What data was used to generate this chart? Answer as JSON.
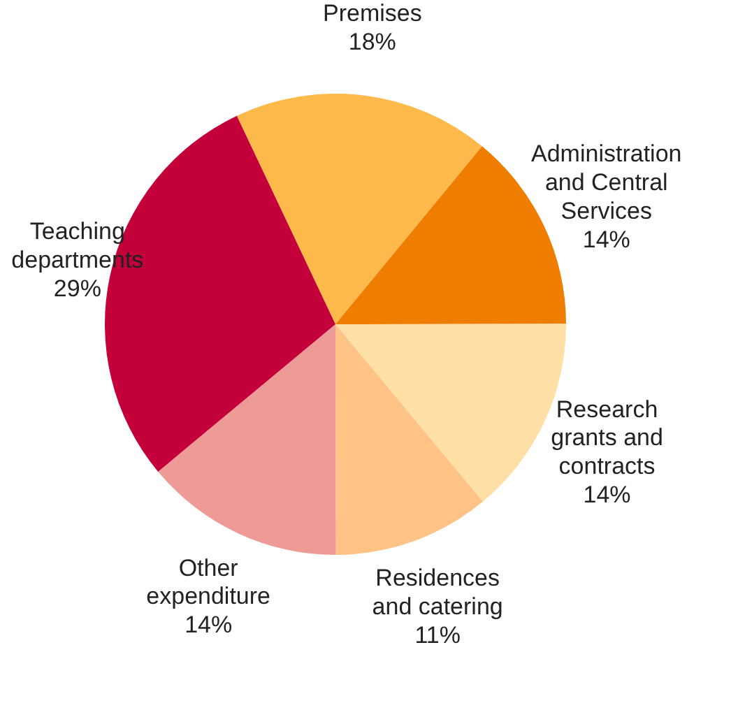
{
  "chart_data": {
    "type": "pie",
    "categories": [
      "Premises",
      "Administration and Central Services",
      "Research grants and contracts",
      "Residences and catering",
      "Other expenditure",
      "Teaching departments"
    ],
    "values": [
      18,
      14,
      14,
      11,
      14,
      29
    ],
    "value_labels": [
      "18%",
      "14%",
      "14%",
      "11%",
      "14%",
      "29%"
    ],
    "colors": [
      "#fdb94a",
      "#ef7d00",
      "#fedfa6",
      "#fec385",
      "#ee9a97",
      "#c4003a"
    ]
  }
}
